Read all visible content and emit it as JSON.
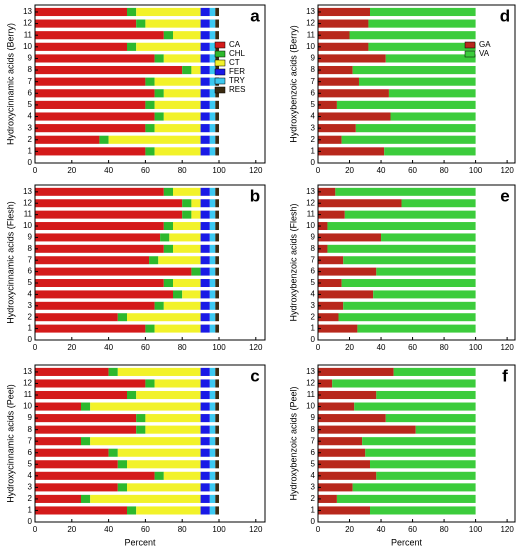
{
  "chart_data": [
    {
      "type": "bar",
      "orientation": "horizontal",
      "stacked": true,
      "panel": "a",
      "ylabel": "Hydroxycinnamic acids (Berry)",
      "legend": true,
      "legend_position": "upper right",
      "y": [
        1,
        2,
        3,
        4,
        5,
        6,
        7,
        8,
        9,
        10,
        11,
        12,
        13
      ],
      "xlim": [
        0,
        125
      ],
      "xticks": [
        0,
        20,
        40,
        60,
        80,
        100,
        120
      ],
      "ylim": [
        0,
        13.6
      ],
      "yticks": [
        0,
        1,
        2,
        3,
        4,
        5,
        6,
        7,
        8,
        9,
        10,
        11,
        12,
        13
      ],
      "series": [
        {
          "name": "CA",
          "color": "#d41a1a",
          "values": [
            60,
            35,
            60,
            65,
            60,
            65,
            60,
            80,
            65,
            50,
            70,
            55,
            50
          ]
        },
        {
          "name": "CHL",
          "color": "#2db82d",
          "values": [
            5,
            5,
            5,
            5,
            5,
            5,
            5,
            5,
            5,
            5,
            5,
            5,
            5
          ]
        },
        {
          "name": "CT",
          "color": "#f2f22a",
          "values": [
            25,
            50,
            25,
            20,
            25,
            20,
            25,
            5,
            20,
            35,
            15,
            30,
            35
          ]
        },
        {
          "name": "FER",
          "color": "#1a1ae6",
          "values": [
            5,
            5,
            5,
            5,
            5,
            5,
            5,
            5,
            5,
            5,
            5,
            5,
            5
          ]
        },
        {
          "name": "TRY",
          "color": "#3cc8f0",
          "values": [
            3,
            3,
            3,
            3,
            3,
            3,
            3,
            3,
            3,
            3,
            3,
            3,
            3
          ]
        },
        {
          "name": "RES",
          "color": "#3a2a10",
          "values": [
            2,
            2,
            2,
            2,
            2,
            2,
            2,
            2,
            2,
            2,
            2,
            2,
            2
          ]
        }
      ]
    },
    {
      "type": "bar",
      "orientation": "horizontal",
      "stacked": true,
      "panel": "b",
      "ylabel": "Hydroxycinnamic acids (Flesh)",
      "y": [
        1,
        2,
        3,
        4,
        5,
        6,
        7,
        8,
        9,
        10,
        11,
        12,
        13
      ],
      "xlim": [
        0,
        125
      ],
      "xticks": [
        0,
        20,
        40,
        60,
        80,
        100,
        120
      ],
      "ylim": [
        0,
        13.6
      ],
      "yticks": [
        0,
        1,
        2,
        3,
        4,
        5,
        6,
        7,
        8,
        9,
        10,
        11,
        12,
        13
      ],
      "series": [
        {
          "color": "#d41a1a",
          "values": [
            60,
            45,
            65,
            75,
            70,
            85,
            62,
            70,
            68,
            70,
            80,
            80,
            70
          ]
        },
        {
          "color": "#2db82d",
          "values": [
            5,
            5,
            5,
            5,
            5,
            5,
            5,
            5,
            5,
            5,
            5,
            5,
            5
          ]
        },
        {
          "color": "#f2f22a",
          "values": [
            25,
            40,
            20,
            10,
            15,
            0,
            23,
            15,
            17,
            15,
            5,
            5,
            15
          ]
        },
        {
          "color": "#1a1ae6",
          "values": [
            5,
            5,
            5,
            5,
            5,
            5,
            5,
            5,
            5,
            5,
            5,
            5,
            5
          ]
        },
        {
          "color": "#3cc8f0",
          "values": [
            3,
            3,
            3,
            3,
            3,
            3,
            3,
            3,
            3,
            3,
            3,
            3,
            3
          ]
        },
        {
          "color": "#3a2a10",
          "values": [
            2,
            2,
            2,
            2,
            2,
            2,
            2,
            2,
            2,
            2,
            2,
            2,
            2
          ]
        }
      ]
    },
    {
      "type": "bar",
      "orientation": "horizontal",
      "stacked": true,
      "panel": "c",
      "ylabel": "Hydroxycinnamic acids (Peel)",
      "xlabel": "Percent",
      "y": [
        1,
        2,
        3,
        4,
        5,
        6,
        7,
        8,
        9,
        10,
        11,
        12,
        13
      ],
      "xlim": [
        0,
        125
      ],
      "xticks": [
        0,
        20,
        40,
        60,
        80,
        100,
        120
      ],
      "ylim": [
        0,
        13.6
      ],
      "yticks": [
        0,
        1,
        2,
        3,
        4,
        5,
        6,
        7,
        8,
        9,
        10,
        11,
        12,
        13
      ],
      "series": [
        {
          "color": "#d41a1a",
          "values": [
            50,
            25,
            45,
            65,
            45,
            40,
            25,
            55,
            55,
            25,
            50,
            60,
            40
          ]
        },
        {
          "color": "#2db82d",
          "values": [
            5,
            5,
            5,
            5,
            5,
            5,
            5,
            5,
            5,
            5,
            5,
            5,
            5
          ]
        },
        {
          "color": "#f2f22a",
          "values": [
            35,
            60,
            40,
            20,
            40,
            45,
            60,
            30,
            30,
            60,
            35,
            25,
            45
          ]
        },
        {
          "color": "#1a1ae6",
          "values": [
            5,
            5,
            5,
            5,
            5,
            5,
            5,
            5,
            5,
            5,
            5,
            5,
            5
          ]
        },
        {
          "color": "#3cc8f0",
          "values": [
            3,
            3,
            3,
            3,
            3,
            3,
            3,
            3,
            3,
            3,
            3,
            3,
            3
          ]
        },
        {
          "color": "#3a2a10",
          "values": [
            2,
            2,
            2,
            2,
            2,
            2,
            2,
            2,
            2,
            2,
            2,
            2,
            2
          ]
        }
      ]
    },
    {
      "type": "bar",
      "orientation": "horizontal",
      "stacked": true,
      "panel": "d",
      "ylabel": "Hydroxybenzoic acids (Berry)",
      "legend": true,
      "legend_position": "upper right",
      "y": [
        1,
        2,
        3,
        4,
        5,
        6,
        7,
        8,
        9,
        10,
        11,
        12,
        13
      ],
      "xlim": [
        0,
        125
      ],
      "xticks": [
        0,
        20,
        40,
        60,
        80,
        100,
        120
      ],
      "ylim": [
        0,
        13.6
      ],
      "yticks": [
        0,
        1,
        2,
        3,
        4,
        5,
        6,
        7,
        8,
        9,
        10,
        11,
        12,
        13
      ],
      "series": [
        {
          "name": "GA",
          "color": "#b8281c",
          "values": [
            42,
            15,
            24,
            46,
            12,
            45,
            26,
            22,
            43,
            32,
            20,
            32,
            33
          ]
        },
        {
          "name": "VA",
          "color": "#3ccc3c",
          "values": [
            58,
            85,
            76,
            54,
            88,
            55,
            74,
            78,
            57,
            68,
            80,
            68,
            67
          ]
        }
      ]
    },
    {
      "type": "bar",
      "orientation": "horizontal",
      "stacked": true,
      "panel": "e",
      "ylabel": "Hydroxybenzoic acids (Flesh)",
      "y": [
        1,
        2,
        3,
        4,
        5,
        6,
        7,
        8,
        9,
        10,
        11,
        12,
        13
      ],
      "xlim": [
        0,
        125
      ],
      "xticks": [
        0,
        20,
        40,
        60,
        80,
        100,
        120
      ],
      "ylim": [
        0,
        13.6
      ],
      "yticks": [
        0,
        1,
        2,
        3,
        4,
        5,
        6,
        7,
        8,
        9,
        10,
        11,
        12,
        13
      ],
      "series": [
        {
          "color": "#b8281c",
          "values": [
            25,
            13,
            16,
            35,
            15,
            37,
            16,
            6,
            40,
            6,
            17,
            53,
            11
          ]
        },
        {
          "color": "#3ccc3c",
          "values": [
            75,
            87,
            84,
            65,
            85,
            63,
            84,
            94,
            60,
            94,
            83,
            47,
            89
          ]
        }
      ]
    },
    {
      "type": "bar",
      "orientation": "horizontal",
      "stacked": true,
      "panel": "f",
      "ylabel": "Hydroxybenzoic acids (Peel)",
      "xlabel": "Percent",
      "y": [
        1,
        2,
        3,
        4,
        5,
        6,
        7,
        8,
        9,
        10,
        11,
        12,
        13
      ],
      "xlim": [
        0,
        125
      ],
      "xticks": [
        0,
        20,
        40,
        60,
        80,
        100,
        120
      ],
      "ylim": [
        0,
        13.6
      ],
      "yticks": [
        0,
        1,
        2,
        3,
        4,
        5,
        6,
        7,
        8,
        9,
        10,
        11,
        12,
        13
      ],
      "series": [
        {
          "color": "#b8281c",
          "values": [
            33,
            12,
            22,
            37,
            33,
            30,
            28,
            62,
            43,
            23,
            37,
            9,
            48
          ]
        },
        {
          "color": "#3ccc3c",
          "values": [
            67,
            88,
            78,
            63,
            67,
            70,
            72,
            38,
            57,
            77,
            63,
            91,
            52
          ]
        }
      ]
    }
  ]
}
